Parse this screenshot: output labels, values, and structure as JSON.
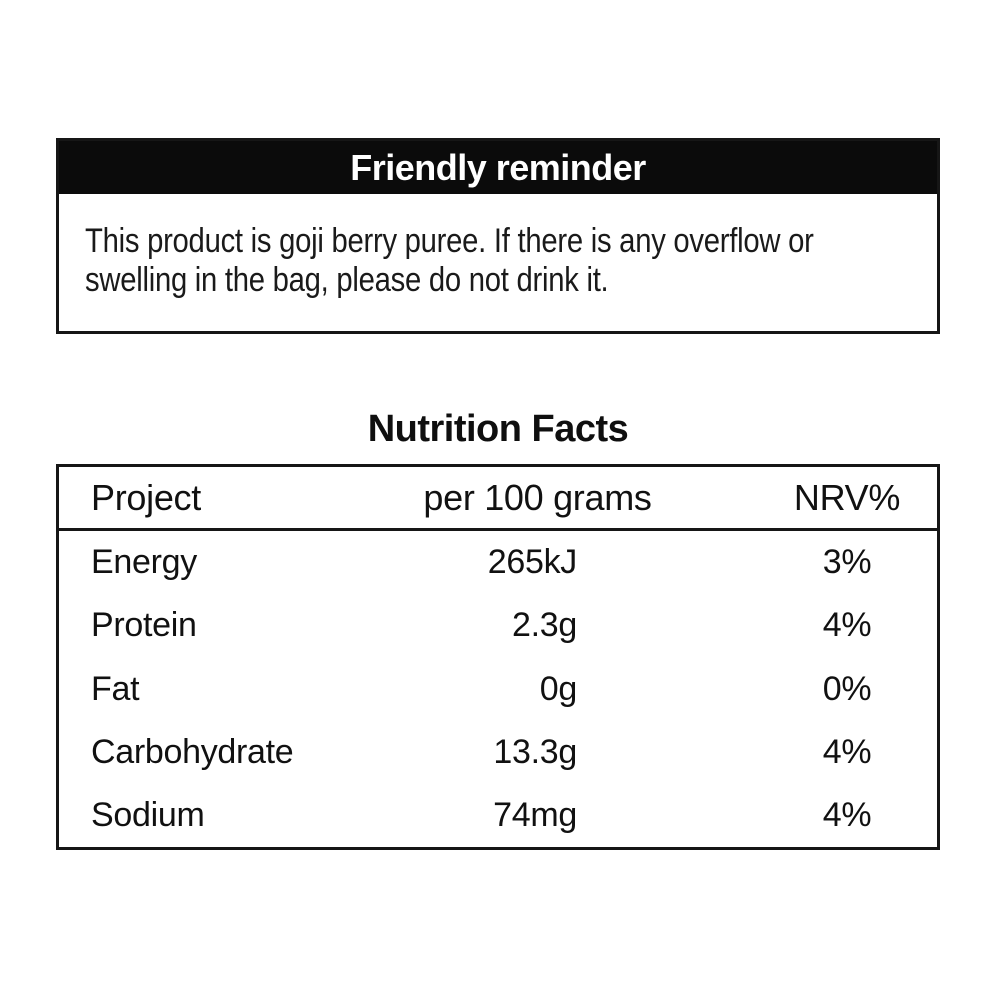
{
  "reminder": {
    "title": "Friendly reminder",
    "body_text": "This product is goji berry puree. If there is any overflow or swelling in the bag, please do not drink it.",
    "body_lines": [
      "This product is goji berry puree. If there is any overflow or",
      "swelling in the bag, please do not drink it."
    ]
  },
  "nutrition": {
    "title": "Nutrition Facts",
    "columns": [
      "Project",
      "per 100 grams",
      "NRV%"
    ],
    "rows": [
      {
        "name": "Energy",
        "amount": "265kJ",
        "nrv": "3%"
      },
      {
        "name": "Protein",
        "amount": "2.3g",
        "nrv": "4%"
      },
      {
        "name": "Fat",
        "amount": "0g",
        "nrv": "0%"
      },
      {
        "name": "Carbohydrate",
        "amount": "13.3g",
        "nrv": "4%"
      },
      {
        "name": "Sodium",
        "amount": "74mg",
        "nrv": "4%"
      }
    ]
  },
  "colors": {
    "ink": "#111111",
    "paper": "#ffffff",
    "header_bar_bg": "#0b0b0b",
    "header_bar_text": "#ffffff"
  }
}
